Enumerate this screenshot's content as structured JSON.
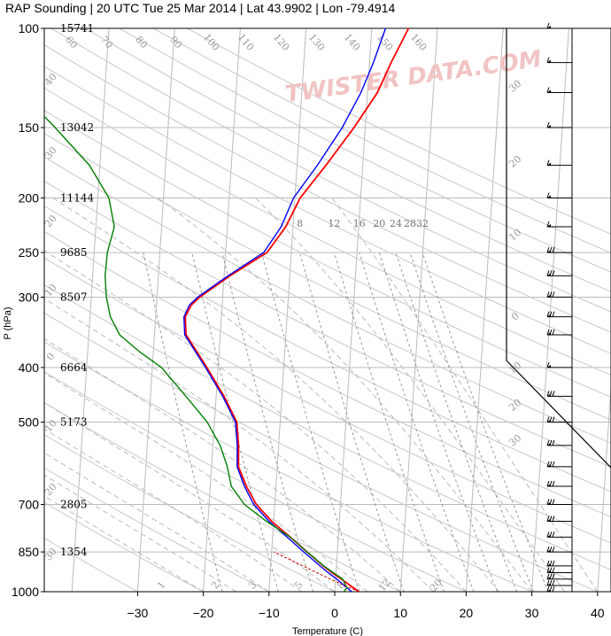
{
  "chart_data": {
    "type": "line",
    "title": "RAP Sounding | 20 UTC Tue 25 Mar 2014 | Lat 43.9902 | Lon -79.4914",
    "xlabel": "Temperature (C)",
    "ylabel": "P (hPa)",
    "xlim": [
      -34,
      46
    ],
    "ylim": [
      1000,
      100
    ],
    "y_scale": "log",
    "x_ticks": [
      -30,
      -20,
      -10,
      0,
      10,
      20,
      30,
      40
    ],
    "x_tick_labels": [
      "−30",
      "−20",
      "−10",
      "0",
      "10",
      "20",
      "30",
      "40"
    ],
    "y_ticks": [
      100,
      150,
      200,
      250,
      300,
      400,
      500,
      700,
      850,
      1000
    ],
    "heights": [
      {
        "p": 100,
        "label": "15741"
      },
      {
        "p": 150,
        "label": "13042"
      },
      {
        "p": 200,
        "label": "11144"
      },
      {
        "p": 250,
        "label": "9685"
      },
      {
        "p": 300,
        "label": "8507"
      },
      {
        "p": 400,
        "label": "6664"
      },
      {
        "p": 500,
        "label": "5173"
      },
      {
        "p": 700,
        "label": "2805"
      },
      {
        "p": 850,
        "label": "1354"
      }
    ],
    "mixing_ratio_labels": [
      {
        "w": 8,
        "label": "8"
      },
      {
        "w": 12,
        "label": "12"
      },
      {
        "w": 16,
        "label": "16"
      },
      {
        "w": 20,
        "label": "20"
      },
      {
        "w": 24,
        "label": "24"
      },
      {
        "w": 28,
        "label": "28"
      },
      {
        "w": 32,
        "label": "32"
      }
    ],
    "skewed_isotherm_labels": [
      "30",
      "20",
      "10",
      "0",
      "10",
      "20",
      "30"
    ],
    "dry_adiabat_labels": [
      "60",
      "70",
      "80",
      "90",
      "100",
      "110",
      "120",
      "130",
      "140",
      "150",
      "160"
    ],
    "low_level_labels": [
      "1",
      "2",
      "3",
      "5",
      "8",
      "12",
      "20"
    ],
    "side_labels": [
      "40",
      "30",
      "20",
      "10",
      "0",
      "10",
      "20",
      "30"
    ],
    "series": [
      {
        "name": "",
        "color": "#ff0000",
        "points": [
          [
            1000,
            3.7
          ],
          [
            975,
            2.3
          ],
          [
            950,
            0.9
          ],
          [
            925,
            -0.6
          ],
          [
            900,
            -2.0
          ],
          [
            850,
            -4.6
          ],
          [
            800,
            -7.3
          ],
          [
            750,
            -10.3
          ],
          [
            700,
            -12.8
          ],
          [
            650,
            -14.5
          ],
          [
            600,
            -15.9
          ],
          [
            550,
            -16.1
          ],
          [
            500,
            -16.6
          ],
          [
            450,
            -18.8
          ],
          [
            400,
            -21.7
          ],
          [
            350,
            -25.2
          ],
          [
            325,
            -25.5
          ],
          [
            310,
            -24.7
          ],
          [
            300,
            -23.5
          ],
          [
            275,
            -19.1
          ],
          [
            250,
            -13.7
          ],
          [
            225,
            -11.1
          ],
          [
            200,
            -9.2
          ],
          [
            175,
            -5.6
          ],
          [
            150,
            -1.7
          ],
          [
            130,
            1.5
          ],
          [
            115,
            3.3
          ],
          [
            100,
            5.6
          ]
        ]
      },
      {
        "name": "",
        "color": "#0000ff",
        "points": [
          [
            1000,
            2.6
          ],
          [
            975,
            1.4
          ],
          [
            950,
            0.2
          ],
          [
            925,
            -1.2
          ],
          [
            900,
            -2.5
          ],
          [
            850,
            -5.1
          ],
          [
            800,
            -7.8
          ],
          [
            750,
            -10.7
          ],
          [
            700,
            -13.2
          ],
          [
            650,
            -14.8
          ],
          [
            600,
            -16.1
          ],
          [
            550,
            -16.3
          ],
          [
            500,
            -16.8
          ],
          [
            450,
            -19.0
          ],
          [
            400,
            -21.9
          ],
          [
            350,
            -25.4
          ],
          [
            325,
            -25.7
          ],
          [
            310,
            -25.0
          ],
          [
            300,
            -23.8
          ],
          [
            275,
            -19.4
          ],
          [
            250,
            -14.2
          ],
          [
            225,
            -11.8
          ],
          [
            200,
            -10.2
          ],
          [
            175,
            -6.9
          ],
          [
            150,
            -3.5
          ],
          [
            130,
            -1.0
          ],
          [
            115,
            0.6
          ],
          [
            100,
            2.1
          ]
        ]
      },
      {
        "name": "",
        "color": "#008000",
        "points": [
          [
            1000,
            1.4
          ],
          [
            985,
            1.8
          ],
          [
            975,
            1.6
          ],
          [
            950,
            1.1
          ],
          [
            925,
            -0.4
          ],
          [
            900,
            -1.9
          ],
          [
            850,
            -4.6
          ],
          [
            800,
            -7.3
          ],
          [
            750,
            -11.1
          ],
          [
            700,
            -14.6
          ],
          [
            650,
            -16.8
          ],
          [
            600,
            -17.6
          ],
          [
            550,
            -18.9
          ],
          [
            500,
            -21.1
          ],
          [
            450,
            -24.6
          ],
          [
            400,
            -28.6
          ],
          [
            375,
            -32.1
          ],
          [
            350,
            -35.3
          ],
          [
            325,
            -36.9
          ],
          [
            300,
            -37.7
          ],
          [
            275,
            -38.1
          ],
          [
            250,
            -38.0
          ],
          [
            225,
            -37.2
          ],
          [
            200,
            -38.3
          ],
          [
            175,
            -41.6
          ],
          [
            150,
            -47.2
          ],
          [
            125,
            -54.2
          ],
          [
            100,
            -60.1
          ]
        ]
      }
    ],
    "wind_barbs": [
      {
        "p": 100,
        "label": "100"
      },
      {
        "p": 115,
        "label": "115"
      },
      {
        "p": 130,
        "label": "130"
      },
      {
        "p": 150,
        "label": "150"
      },
      {
        "p": 175,
        "label": "175"
      },
      {
        "p": 200,
        "label": "200"
      },
      {
        "p": 225,
        "label": "225"
      },
      {
        "p": 250,
        "label": "250"
      },
      {
        "p": 275,
        "label": "275"
      },
      {
        "p": 300,
        "label": "300"
      },
      {
        "p": 325,
        "label": "325"
      },
      {
        "p": 350,
        "label": "350"
      },
      {
        "p": 400,
        "label": "400"
      },
      {
        "p": 450,
        "label": "450"
      },
      {
        "p": 500,
        "label": "500"
      },
      {
        "p": 550,
        "label": "550"
      },
      {
        "p": 600,
        "label": "600"
      },
      {
        "p": 650,
        "label": "650"
      },
      {
        "p": 700,
        "label": "700"
      },
      {
        "p": 750,
        "label": "750"
      },
      {
        "p": 800,
        "label": "800"
      },
      {
        "p": 850,
        "label": "850"
      },
      {
        "p": 900,
        "label": "900"
      },
      {
        "p": 925,
        "label": "925"
      },
      {
        "p": 950,
        "label": "950"
      },
      {
        "p": 975,
        "label": "975"
      },
      {
        "p": 1000,
        "label": "1000"
      }
    ],
    "grid": true,
    "legend": "none",
    "watermark": "TWISTER DATA.COM"
  }
}
